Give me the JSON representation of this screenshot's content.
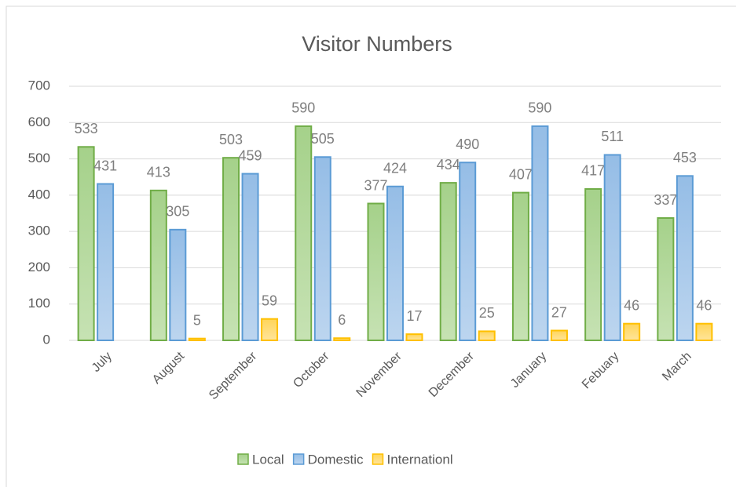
{
  "chart_data": {
    "type": "bar",
    "title": "Visitor Numbers",
    "categories": [
      "July",
      "August",
      "September",
      "October",
      "November",
      "December",
      "January",
      "Febuary",
      "March"
    ],
    "series": [
      {
        "name": "Local",
        "color": "#70ad47",
        "values": [
          533,
          413,
          503,
          590,
          377,
          434,
          407,
          417,
          337
        ]
      },
      {
        "name": "Domestic",
        "color": "#5b9bd5",
        "values": [
          431,
          305,
          459,
          505,
          424,
          490,
          590,
          511,
          453
        ]
      },
      {
        "name": "Internationl",
        "color": "#ffc000",
        "values": [
          null,
          5,
          59,
          6,
          17,
          25,
          27,
          46,
          46
        ]
      }
    ],
    "ylim": [
      0,
      700
    ],
    "yticks": [
      0,
      100,
      200,
      300,
      400,
      500,
      600,
      700
    ],
    "grid": true,
    "legend": "bottom"
  }
}
